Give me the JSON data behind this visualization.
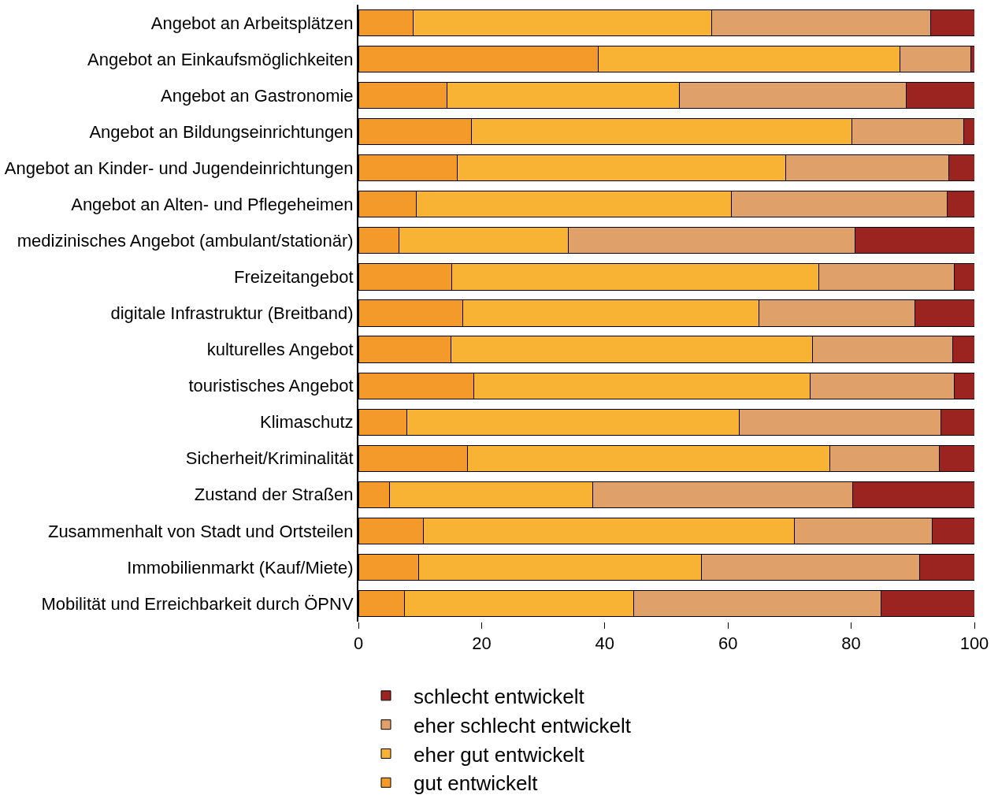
{
  "chart_data": {
    "type": "bar",
    "orientation": "horizontal",
    "stacked": true,
    "categories": [
      "Angebot an Arbeitsplätzen",
      "Angebot an Einkaufsmöglichkeiten",
      "Angebot an Gastronomie",
      "Angebot an Bildungseinrichtungen",
      "Angebot an Kinder- und Jugendeinrichtungen",
      "Angebot an Alten- und Pflegeheimen",
      "medizinisches Angebot (ambulant/stationär)",
      "Freizeitangebot",
      "digitale Infrastruktur (Breitband)",
      "kulturelles Angebot",
      "touristisches Angebot",
      "Klimaschutz",
      "Sicherheit/Kriminalität",
      "Zustand der Straßen",
      "Zusammenhalt von Stadt und Ortsteilen",
      "Immobilienmarkt (Kauf/Miete)",
      "Mobilität und Erreichbarkeit durch ÖPNV"
    ],
    "series": [
      {
        "name": "gut entwickelt",
        "color": "#f39a2a",
        "values": [
          8.9,
          38.9,
          14.4,
          18.3,
          16.1,
          9.4,
          6.6,
          15.2,
          16.9,
          15.0,
          18.7,
          7.8,
          17.7,
          5.1,
          10.5,
          9.8,
          7.5
        ]
      },
      {
        "name": "eher gut entwickelt",
        "color": "#f8b334",
        "values": [
          48.4,
          49.0,
          37.7,
          61.8,
          53.3,
          51.1,
          27.5,
          59.5,
          48.1,
          58.7,
          54.6,
          54.0,
          58.8,
          32.9,
          60.3,
          45.9,
          37.2
        ]
      },
      {
        "name": "eher schlecht entwickelt",
        "color": "#e0a06a",
        "values": [
          35.6,
          11.5,
          36.8,
          18.2,
          26.4,
          35.1,
          46.5,
          22.0,
          25.4,
          22.8,
          23.4,
          32.8,
          17.8,
          42.2,
          22.3,
          35.4,
          40.2
        ]
      },
      {
        "name": "schlecht entwickelt",
        "color": "#9b2420",
        "values": [
          7.1,
          0.6,
          11.1,
          1.7,
          4.2,
          4.4,
          19.4,
          3.3,
          9.6,
          3.5,
          3.3,
          5.4,
          5.7,
          19.8,
          6.9,
          8.9,
          15.1
        ]
      }
    ],
    "xlim": [
      0,
      100
    ],
    "xticks": [
      0,
      20,
      40,
      60,
      80,
      100
    ],
    "legend": "bottom"
  }
}
